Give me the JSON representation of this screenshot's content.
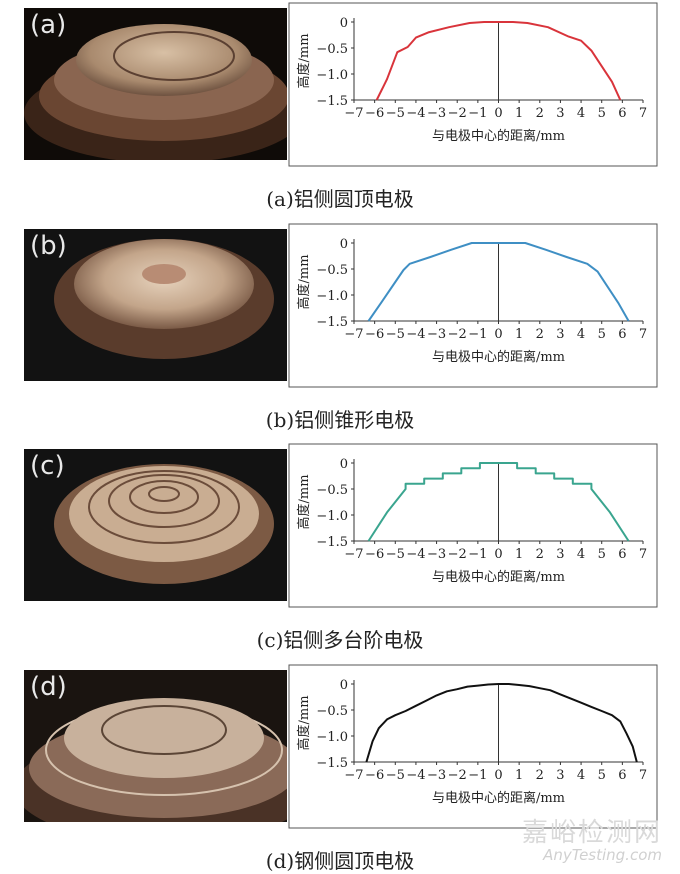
{
  "panels": [
    {
      "tag": "(a)",
      "caption": "(a)铝侧圆顶电极"
    },
    {
      "tag": "(b)",
      "caption": "(b)铝侧锥形电极"
    },
    {
      "tag": "(c)",
      "caption": "(c)铝侧多台阶电极"
    },
    {
      "tag": "(d)",
      "caption": "(d)钢侧圆顶电极"
    }
  ],
  "watermark": {
    "cn": "嘉峪检测网",
    "en": "AnyTesting.com"
  },
  "chart_data": [
    {
      "type": "line",
      "xlabel": "与电极中心的距离/mm",
      "ylabel": "高度/mm",
      "xlim": [
        -7,
        7
      ],
      "ylim": [
        -1.5,
        0
      ],
      "xticks": [
        "−7",
        "−6",
        "−5",
        "−4",
        "−3",
        "−2",
        "−1",
        "0",
        "1",
        "2",
        "3",
        "4",
        "5",
        "6",
        "7"
      ],
      "yticks": [
        "0",
        "−0.5",
        "−1.0",
        "−1.5"
      ],
      "series": [
        {
          "color": "#d9343b",
          "x": [
            -5.9,
            -5.4,
            -4.9,
            -4.4,
            -4.0,
            -3.4,
            -2.4,
            -1.4,
            -0.7,
            0,
            0.7,
            1.4,
            2.4,
            3.4,
            4.0,
            4.5,
            5.0,
            5.5,
            5.9
          ],
          "y": [
            -1.5,
            -1.1,
            -0.58,
            -0.48,
            -0.3,
            -0.2,
            -0.1,
            -0.02,
            0,
            0,
            0,
            -0.02,
            -0.1,
            -0.28,
            -0.36,
            -0.55,
            -0.85,
            -1.15,
            -1.5
          ]
        }
      ]
    },
    {
      "type": "line",
      "xlabel": "与电极中心的距离/mm",
      "ylabel": "高度/mm",
      "xlim": [
        -7,
        7
      ],
      "ylim": [
        -1.5,
        0
      ],
      "xticks": [
        "−7",
        "−6",
        "−5",
        "−4",
        "−3",
        "−2",
        "−1",
        "0",
        "1",
        "2",
        "3",
        "4",
        "5",
        "6",
        "7"
      ],
      "yticks": [
        "0",
        "−0.5",
        "−1.0",
        "−1.5"
      ],
      "series": [
        {
          "color": "#3f8fc4",
          "x": [
            -6.3,
            -5.6,
            -5.0,
            -4.6,
            -4.3,
            -3.3,
            -2.3,
            -1.3,
            0,
            1.3,
            2.3,
            3.3,
            4.3,
            4.8,
            5.3,
            5.8,
            6.3
          ],
          "y": [
            -1.5,
            -1.1,
            -0.75,
            -0.52,
            -0.4,
            -0.27,
            -0.13,
            0,
            0,
            0,
            -0.13,
            -0.27,
            -0.4,
            -0.55,
            -0.85,
            -1.15,
            -1.5
          ]
        }
      ]
    },
    {
      "type": "line",
      "xlabel": "与电极中心的距离/mm",
      "ylabel": "高度/mm",
      "xlim": [
        -7,
        7
      ],
      "ylim": [
        -1.5,
        0
      ],
      "xticks": [
        "−7",
        "−6",
        "−5",
        "−4",
        "−3",
        "−2",
        "−1",
        "0",
        "1",
        "2",
        "3",
        "4",
        "5",
        "6",
        "7"
      ],
      "yticks": [
        "0",
        "−0.5",
        "−1.0",
        "−1.5"
      ],
      "series": [
        {
          "color": "#3aa58f",
          "x": [
            -6.3,
            -5.4,
            -4.5,
            -4.5,
            -3.6,
            -3.6,
            -2.7,
            -2.7,
            -1.8,
            -1.8,
            -0.9,
            -0.9,
            0,
            0.9,
            0.9,
            1.8,
            1.8,
            2.7,
            2.7,
            3.6,
            3.6,
            4.5,
            4.5,
            5.4,
            6.3
          ],
          "y": [
            -1.5,
            -0.95,
            -0.5,
            -0.4,
            -0.4,
            -0.3,
            -0.3,
            -0.2,
            -0.2,
            -0.1,
            -0.1,
            0,
            0,
            0,
            -0.1,
            -0.1,
            -0.2,
            -0.2,
            -0.3,
            -0.3,
            -0.4,
            -0.4,
            -0.5,
            -0.95,
            -1.5
          ]
        }
      ]
    },
    {
      "type": "line",
      "xlabel": "与电极中心的距离/mm",
      "ylabel": "高度/mm",
      "xlim": [
        -7,
        7
      ],
      "ylim": [
        -1.5,
        0
      ],
      "xticks": [
        "−7",
        "−6",
        "−5",
        "−4",
        "−3",
        "−2",
        "−1",
        "0",
        "1",
        "2",
        "3",
        "4",
        "5",
        "6",
        "7"
      ],
      "yticks": [
        "0",
        "−0.5",
        "−1.0",
        "−1.5"
      ],
      "series": [
        {
          "color": "#111111",
          "x": [
            -6.4,
            -6.1,
            -5.8,
            -5.4,
            -5.0,
            -4.5,
            -4.0,
            -3.5,
            -3.0,
            -2.5,
            -2.0,
            -1.5,
            -1.0,
            -0.5,
            0,
            0.5,
            1.0,
            1.5,
            2.0,
            2.5,
            3.0,
            3.5,
            4.0,
            4.5,
            5.0,
            5.5,
            5.9,
            6.2,
            6.5,
            6.7
          ],
          "y": [
            -1.5,
            -1.1,
            -0.85,
            -0.68,
            -0.6,
            -0.52,
            -0.42,
            -0.32,
            -0.22,
            -0.14,
            -0.1,
            -0.05,
            -0.03,
            -0.01,
            0,
            0,
            -0.02,
            -0.04,
            -0.08,
            -0.12,
            -0.2,
            -0.28,
            -0.36,
            -0.44,
            -0.52,
            -0.6,
            -0.72,
            -0.95,
            -1.2,
            -1.5
          ]
        }
      ]
    }
  ]
}
